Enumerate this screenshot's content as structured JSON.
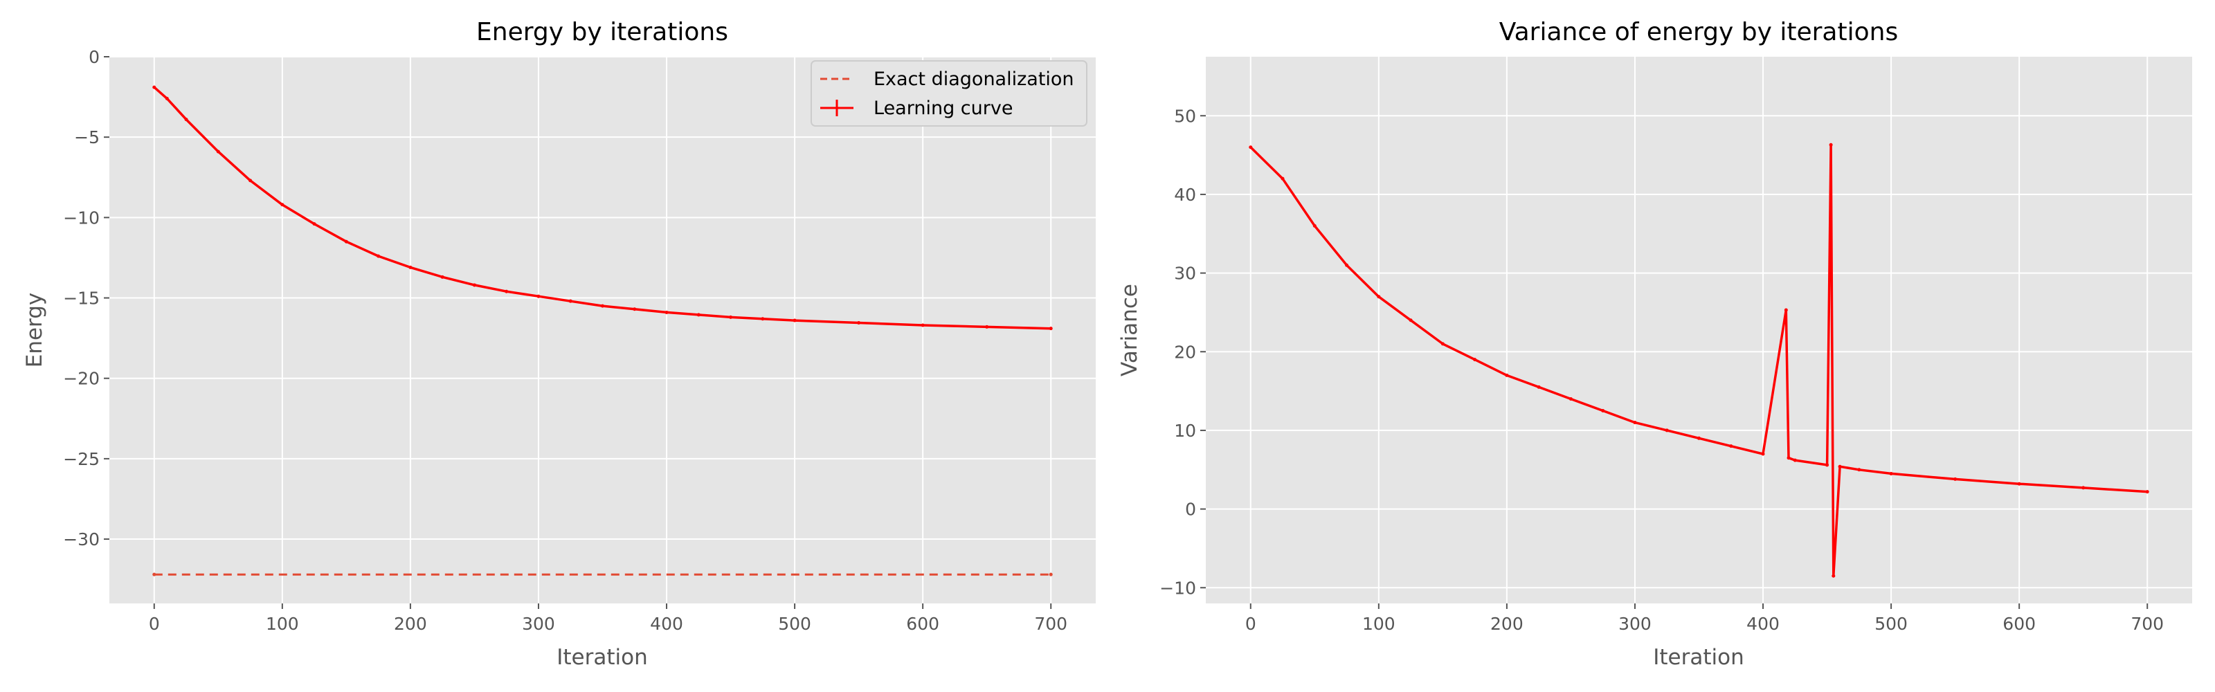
{
  "chart_data": [
    {
      "type": "line",
      "title": "Energy by iterations",
      "xlabel": "Iteration",
      "ylabel": "Energy",
      "xlim": [
        -35,
        735
      ],
      "ylim": [
        -34,
        0
      ],
      "xticks": [
        0,
        100,
        200,
        300,
        400,
        500,
        600,
        700
      ],
      "yticks": [
        0,
        -5,
        -10,
        -15,
        -20,
        -25,
        -30
      ],
      "grid": true,
      "legend": "top-right",
      "series": [
        {
          "name": "Exact diagonalization",
          "style": "dashed",
          "color": "#e24a33",
          "x": [
            0,
            700
          ],
          "y": [
            -32.2,
            -32.2
          ]
        },
        {
          "name": "Learning curve",
          "style": "solid-errorbar",
          "color": "#ff0000",
          "x": [
            0,
            10,
            25,
            50,
            75,
            100,
            125,
            150,
            175,
            200,
            225,
            250,
            275,
            300,
            325,
            350,
            375,
            400,
            425,
            450,
            475,
            500,
            550,
            600,
            650,
            700
          ],
          "y": [
            -1.9,
            -2.6,
            -3.9,
            -5.9,
            -7.7,
            -9.2,
            -10.4,
            -11.5,
            -12.4,
            -13.1,
            -13.7,
            -14.2,
            -14.6,
            -14.9,
            -15.2,
            -15.5,
            -15.7,
            -15.9,
            -16.05,
            -16.2,
            -16.3,
            -16.4,
            -16.55,
            -16.7,
            -16.8,
            -16.9
          ]
        }
      ]
    },
    {
      "type": "line",
      "title": "Variance of energy by iterations",
      "xlabel": "Iteration",
      "ylabel": "Variance",
      "xlim": [
        -35,
        735
      ],
      "ylim": [
        -12,
        57.5
      ],
      "xticks": [
        0,
        100,
        200,
        300,
        400,
        500,
        600,
        700
      ],
      "yticks": [
        -10,
        0,
        10,
        20,
        30,
        40,
        50
      ],
      "grid": true,
      "series": [
        {
          "color": "#ff0000",
          "x": [
            0,
            25,
            50,
            75,
            100,
            125,
            150,
            175,
            200,
            225,
            250,
            275,
            300,
            325,
            350,
            375,
            400,
            418,
            420,
            425,
            450,
            453,
            455,
            460,
            475,
            500,
            550,
            600,
            650,
            700
          ],
          "y": [
            46,
            42,
            36,
            31,
            27,
            24,
            21,
            19,
            17,
            15.5,
            14,
            12.5,
            11,
            10,
            9,
            8,
            7,
            25.3,
            6.5,
            6.2,
            5.6,
            46.3,
            -8.5,
            5.4,
            5,
            4.5,
            3.8,
            3.2,
            2.7,
            2.2
          ]
        }
      ]
    }
  ]
}
